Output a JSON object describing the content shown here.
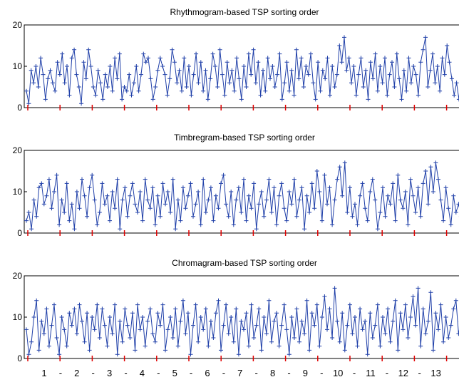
{
  "colors": {
    "series": "#1f3fa8",
    "separator": "#e00000",
    "axis": "#000000",
    "background": "#ffffff"
  },
  "chart_data": [
    {
      "type": "line",
      "title": "Rhythmogram-based TSP sorting order",
      "xlabel": "",
      "ylabel": "",
      "ylim": [
        0,
        20
      ],
      "yticks": [
        0,
        10,
        20
      ],
      "grid": false,
      "marker": "+",
      "series": [
        {
          "values": [
            4,
            1,
            9,
            6,
            10,
            5,
            12,
            8,
            2,
            7,
            9,
            6,
            4,
            11,
            8,
            13,
            6,
            10,
            3,
            12,
            14,
            8,
            5,
            1,
            11,
            7,
            14,
            10,
            5,
            3,
            9,
            6,
            2,
            8,
            5,
            10,
            4,
            12,
            7,
            13,
            2,
            5,
            4,
            8,
            3,
            6,
            10,
            4,
            8,
            13,
            11,
            12,
            7,
            2,
            5,
            9,
            12,
            10,
            8,
            3,
            7,
            14,
            11,
            6,
            9,
            4,
            12,
            5,
            10,
            3,
            8,
            13,
            6,
            11,
            4,
            9,
            2,
            7,
            13,
            10,
            5,
            14,
            8,
            3,
            11,
            6,
            9,
            4,
            12,
            7,
            2,
            10,
            5,
            13,
            8,
            14,
            6,
            11,
            3,
            9,
            4,
            12,
            7,
            10,
            5,
            8,
            13,
            2,
            6,
            11,
            4,
            9,
            3,
            14,
            7,
            12,
            5,
            10,
            8,
            13,
            6,
            2,
            11,
            4,
            9,
            7,
            12,
            3,
            10,
            5,
            8,
            15,
            11,
            17,
            9,
            12,
            6,
            10,
            3,
            8,
            12,
            5,
            9,
            2,
            11,
            7,
            13,
            4,
            10,
            6,
            12,
            3,
            8,
            11,
            5,
            13,
            7,
            2,
            9,
            4,
            12,
            6,
            10,
            8,
            3,
            11,
            14,
            17,
            5,
            9,
            13,
            6,
            10,
            4,
            12,
            8,
            15,
            11,
            7,
            3,
            6,
            2,
            9,
            8,
            5
          ]
        }
      ],
      "separators": 14
    },
    {
      "type": "line",
      "title": "Timbregram-based TSP sorting order",
      "xlabel": "",
      "ylabel": "",
      "ylim": [
        0,
        20
      ],
      "yticks": [
        0,
        10,
        20
      ],
      "grid": false,
      "marker": "+",
      "series": [
        {
          "values": [
            3,
            5,
            1,
            8,
            4,
            11,
            12,
            7,
            9,
            13,
            6,
            10,
            14,
            2,
            8,
            5,
            12,
            3,
            7,
            1,
            10,
            6,
            13,
            9,
            4,
            11,
            14,
            8,
            2,
            5,
            12,
            7,
            9,
            3,
            10,
            6,
            13,
            1,
            8,
            11,
            4,
            9,
            12,
            7,
            5,
            10,
            3,
            13,
            8,
            6,
            11,
            2,
            9,
            4,
            12,
            7,
            10,
            5,
            13,
            1,
            8,
            3,
            11,
            6,
            9,
            12,
            4,
            7,
            10,
            2,
            13,
            5,
            8,
            11,
            3,
            9,
            6,
            12,
            14,
            7,
            4,
            10,
            2,
            8,
            11,
            5,
            13,
            3,
            9,
            6,
            12,
            1,
            7,
            10,
            4,
            8,
            13,
            5,
            11,
            2,
            9,
            12,
            6,
            3,
            10,
            7,
            13,
            4,
            8,
            11,
            1,
            9,
            5,
            12,
            6,
            15,
            10,
            3,
            14,
            7,
            11,
            2,
            8,
            13,
            16,
            9,
            17,
            5,
            11,
            4,
            7,
            2,
            9,
            12,
            6,
            3,
            10,
            13,
            8,
            1,
            5,
            11,
            4,
            9,
            7,
            12,
            3,
            14,
            8,
            6,
            10,
            2,
            13,
            9,
            5,
            11,
            4,
            12,
            15,
            7,
            16,
            10,
            17,
            13,
            8,
            3,
            11,
            6,
            2,
            9,
            5,
            7,
            4,
            8,
            6
          ]
        }
      ],
      "separators": 14
    },
    {
      "type": "line",
      "title": "Chromagram-based TSP sorting order",
      "xlabel": "",
      "ylabel": "",
      "ylim": [
        0,
        20
      ],
      "yticks": [
        0,
        10,
        20
      ],
      "grid": false,
      "marker": "+",
      "series": [
        {
          "values": [
            7,
            1,
            4,
            10,
            14,
            2,
            9,
            6,
            12,
            3,
            8,
            13,
            5,
            1,
            10,
            7,
            3,
            11,
            8,
            12,
            6,
            13,
            9,
            4,
            11,
            2,
            10,
            7,
            13,
            5,
            12,
            8,
            3,
            10,
            6,
            13,
            1,
            9,
            4,
            12,
            8,
            5,
            11,
            2,
            13,
            7,
            10,
            3,
            9,
            12,
            6,
            4,
            11,
            8,
            13,
            2,
            7,
            10,
            5,
            12,
            3,
            9,
            14,
            6,
            11,
            1,
            8,
            13,
            4,
            10,
            7,
            12,
            3,
            9,
            5,
            11,
            14,
            2,
            8,
            13,
            6,
            10,
            4,
            12,
            1,
            9,
            7,
            11,
            3,
            13,
            5,
            8,
            12,
            2,
            10,
            6,
            14,
            4,
            9,
            11,
            3,
            8,
            13,
            7,
            1,
            10,
            5,
            12,
            4,
            9,
            6,
            14,
            2,
            11,
            8,
            13,
            3,
            10,
            15,
            7,
            12,
            5,
            17,
            9,
            4,
            11,
            2,
            8,
            13,
            6,
            10,
            3,
            12,
            7,
            9,
            1,
            11,
            5,
            8,
            13,
            3,
            10,
            6,
            12,
            4,
            9,
            14,
            2,
            11,
            7,
            13,
            5,
            10,
            15,
            8,
            17,
            3,
            12,
            6,
            9,
            16,
            2,
            11,
            7,
            13,
            4,
            10,
            5,
            8,
            12,
            14,
            6,
            9,
            3,
            7
          ]
        }
      ],
      "separators": 14
    }
  ],
  "x_axis_labels": [
    "1",
    "-",
    "2",
    "-",
    "3",
    "-",
    "4",
    "-",
    "5",
    "-",
    "6",
    "-",
    "7",
    "-",
    "8",
    "-",
    "9",
    "-",
    "10",
    "-",
    "11",
    "-",
    "12",
    "-",
    "13"
  ]
}
